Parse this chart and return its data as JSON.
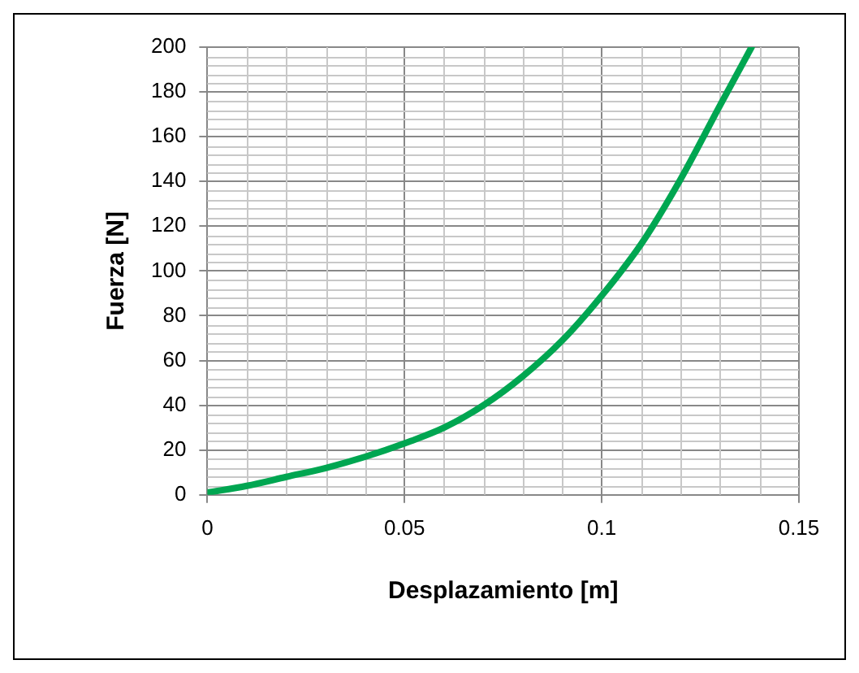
{
  "chart_data": {
    "type": "line",
    "xlabel": "Desplazamiento [m]",
    "ylabel": "Fuerza [N]",
    "x": [
      0,
      0.01,
      0.02,
      0.03,
      0.04,
      0.05,
      0.06,
      0.07,
      0.08,
      0.09,
      0.1,
      0.11,
      0.12,
      0.13,
      0.138
    ],
    "series": [
      {
        "color": "#00a651",
        "values": [
          1,
          4,
          8,
          12,
          17,
          23,
          30,
          40,
          53,
          69,
          89,
          112,
          141,
          174,
          200
        ]
      }
    ],
    "xlim": [
      0,
      0.15
    ],
    "xticks": [
      0,
      0.05,
      0.1,
      0.15
    ],
    "ylim": [
      0,
      200
    ],
    "yticks": [
      0,
      20,
      40,
      60,
      80,
      100,
      120,
      140,
      160,
      180,
      200
    ],
    "grid": true,
    "legend": false,
    "marker": "none",
    "line_style": "solid"
  }
}
